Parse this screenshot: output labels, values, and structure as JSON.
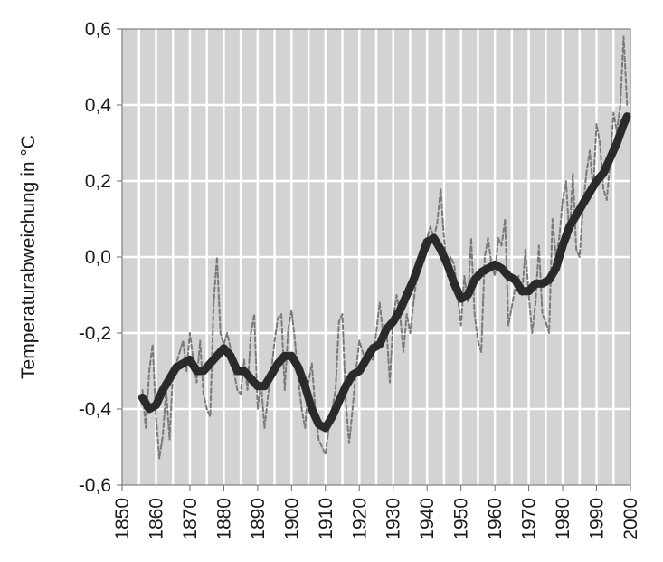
{
  "chart_data": {
    "type": "line",
    "ylabel": "Temperaturabweichung in °C",
    "xlabel": "",
    "xlim": [
      1850,
      2000
    ],
    "ylim": [
      -0.6,
      0.6
    ],
    "x_ticks": [
      "1850",
      "1860",
      "1870",
      "1880",
      "1890",
      "1900",
      "1910",
      "1920",
      "1930",
      "1940",
      "1950",
      "1960",
      "1970",
      "1980",
      "1990",
      "2000"
    ],
    "x_tick_values": [
      1850,
      1860,
      1870,
      1880,
      1890,
      1900,
      1910,
      1920,
      1930,
      1940,
      1950,
      1960,
      1970,
      1980,
      1990,
      2000
    ],
    "y_ticks": [
      "0,6",
      "0,4",
      "0,2",
      "0,0",
      "-0,2",
      "-0,4",
      "-0,6"
    ],
    "y_tick_values": [
      0.6,
      0.4,
      0.2,
      0.0,
      -0.2,
      -0.4,
      -0.6
    ],
    "grid": true,
    "background_color": "#d3d3d3",
    "grid_color": "#ffffff",
    "series": [
      {
        "style": "dashed-annual",
        "color": "#7a7a7a",
        "x": [
          1856,
          1857,
          1858,
          1859,
          1860,
          1861,
          1862,
          1863,
          1864,
          1865,
          1866,
          1867,
          1868,
          1869,
          1870,
          1871,
          1872,
          1873,
          1874,
          1875,
          1876,
          1877,
          1878,
          1879,
          1880,
          1881,
          1882,
          1883,
          1884,
          1885,
          1886,
          1887,
          1888,
          1889,
          1890,
          1891,
          1892,
          1893,
          1894,
          1895,
          1896,
          1897,
          1898,
          1899,
          1900,
          1901,
          1902,
          1903,
          1904,
          1905,
          1906,
          1907,
          1908,
          1909,
          1910,
          1911,
          1912,
          1913,
          1914,
          1915,
          1916,
          1917,
          1918,
          1919,
          1920,
          1921,
          1922,
          1923,
          1924,
          1925,
          1926,
          1927,
          1928,
          1929,
          1930,
          1931,
          1932,
          1933,
          1934,
          1935,
          1936,
          1937,
          1938,
          1939,
          1940,
          1941,
          1942,
          1943,
          1944,
          1945,
          1946,
          1947,
          1948,
          1949,
          1950,
          1951,
          1952,
          1953,
          1954,
          1955,
          1956,
          1957,
          1958,
          1959,
          1960,
          1961,
          1962,
          1963,
          1964,
          1965,
          1966,
          1967,
          1968,
          1969,
          1970,
          1971,
          1972,
          1973,
          1974,
          1975,
          1976,
          1977,
          1978,
          1979,
          1980,
          1981,
          1982,
          1983,
          1984,
          1985,
          1986,
          1987,
          1988,
          1989,
          1990,
          1991,
          1992,
          1993,
          1994,
          1995,
          1996,
          1997,
          1998,
          1999
        ],
        "y": [
          -0.35,
          -0.45,
          -0.3,
          -0.23,
          -0.42,
          -0.53,
          -0.47,
          -0.35,
          -0.48,
          -0.3,
          -0.28,
          -0.25,
          -0.22,
          -0.3,
          -0.2,
          -0.27,
          -0.33,
          -0.22,
          -0.36,
          -0.4,
          -0.42,
          -0.12,
          0.0,
          -0.2,
          -0.23,
          -0.2,
          -0.24,
          -0.3,
          -0.35,
          -0.36,
          -0.27,
          -0.35,
          -0.2,
          -0.15,
          -0.4,
          -0.33,
          -0.45,
          -0.37,
          -0.3,
          -0.22,
          -0.16,
          -0.15,
          -0.35,
          -0.19,
          -0.14,
          -0.22,
          -0.32,
          -0.4,
          -0.45,
          -0.33,
          -0.28,
          -0.4,
          -0.48,
          -0.5,
          -0.52,
          -0.45,
          -0.4,
          -0.35,
          -0.17,
          -0.15,
          -0.38,
          -0.49,
          -0.4,
          -0.3,
          -0.22,
          -0.25,
          -0.28,
          -0.27,
          -0.27,
          -0.2,
          -0.12,
          -0.2,
          -0.18,
          -0.33,
          -0.16,
          -0.1,
          -0.15,
          -0.25,
          -0.15,
          -0.2,
          -0.12,
          -0.05,
          0.02,
          0.0,
          0.05,
          0.08,
          0.05,
          0.09,
          0.18,
          0.05,
          -0.05,
          0.0,
          -0.02,
          -0.1,
          -0.18,
          -0.05,
          -0.12,
          0.05,
          -0.15,
          -0.22,
          -0.25,
          0.0,
          0.05,
          -0.02,
          -0.05,
          0.05,
          0.03,
          0.1,
          -0.18,
          -0.13,
          -0.08,
          -0.05,
          -0.1,
          0.02,
          -0.1,
          -0.2,
          -0.12,
          0.03,
          -0.15,
          -0.17,
          -0.2,
          0.1,
          0.0,
          0.05,
          0.15,
          0.2,
          0.05,
          0.22,
          0.02,
          0.0,
          0.13,
          0.22,
          0.28,
          0.18,
          0.35,
          0.3,
          0.18,
          0.15,
          0.25,
          0.38,
          0.33,
          0.4,
          0.58,
          0.4
        ]
      },
      {
        "style": "smoothed-thick",
        "color": "#2a2a2a",
        "x": [
          1856,
          1858,
          1860,
          1862,
          1864,
          1866,
          1868,
          1870,
          1872,
          1874,
          1876,
          1878,
          1880,
          1882,
          1884,
          1886,
          1888,
          1890,
          1892,
          1894,
          1896,
          1898,
          1900,
          1902,
          1904,
          1906,
          1908,
          1910,
          1912,
          1914,
          1916,
          1918,
          1920,
          1922,
          1924,
          1926,
          1928,
          1930,
          1932,
          1934,
          1936,
          1938,
          1940,
          1942,
          1944,
          1946,
          1948,
          1950,
          1952,
          1954,
          1956,
          1958,
          1960,
          1962,
          1964,
          1966,
          1968,
          1970,
          1972,
          1974,
          1976,
          1978,
          1980,
          1982,
          1984,
          1986,
          1988,
          1990,
          1992,
          1994,
          1996,
          1998,
          1999
        ],
        "y": [
          -0.37,
          -0.4,
          -0.39,
          -0.35,
          -0.32,
          -0.29,
          -0.28,
          -0.27,
          -0.3,
          -0.3,
          -0.28,
          -0.26,
          -0.24,
          -0.26,
          -0.3,
          -0.3,
          -0.32,
          -0.34,
          -0.34,
          -0.31,
          -0.28,
          -0.26,
          -0.26,
          -0.29,
          -0.34,
          -0.4,
          -0.44,
          -0.45,
          -0.42,
          -0.38,
          -0.34,
          -0.31,
          -0.3,
          -0.27,
          -0.24,
          -0.23,
          -0.19,
          -0.17,
          -0.14,
          -0.1,
          -0.06,
          -0.01,
          0.04,
          0.05,
          0.02,
          -0.02,
          -0.07,
          -0.11,
          -0.1,
          -0.06,
          -0.04,
          -0.03,
          -0.02,
          -0.03,
          -0.05,
          -0.06,
          -0.09,
          -0.09,
          -0.07,
          -0.07,
          -0.06,
          -0.03,
          0.03,
          0.08,
          0.11,
          0.14,
          0.17,
          0.2,
          0.22,
          0.26,
          0.3,
          0.35,
          0.37
        ]
      }
    ]
  }
}
